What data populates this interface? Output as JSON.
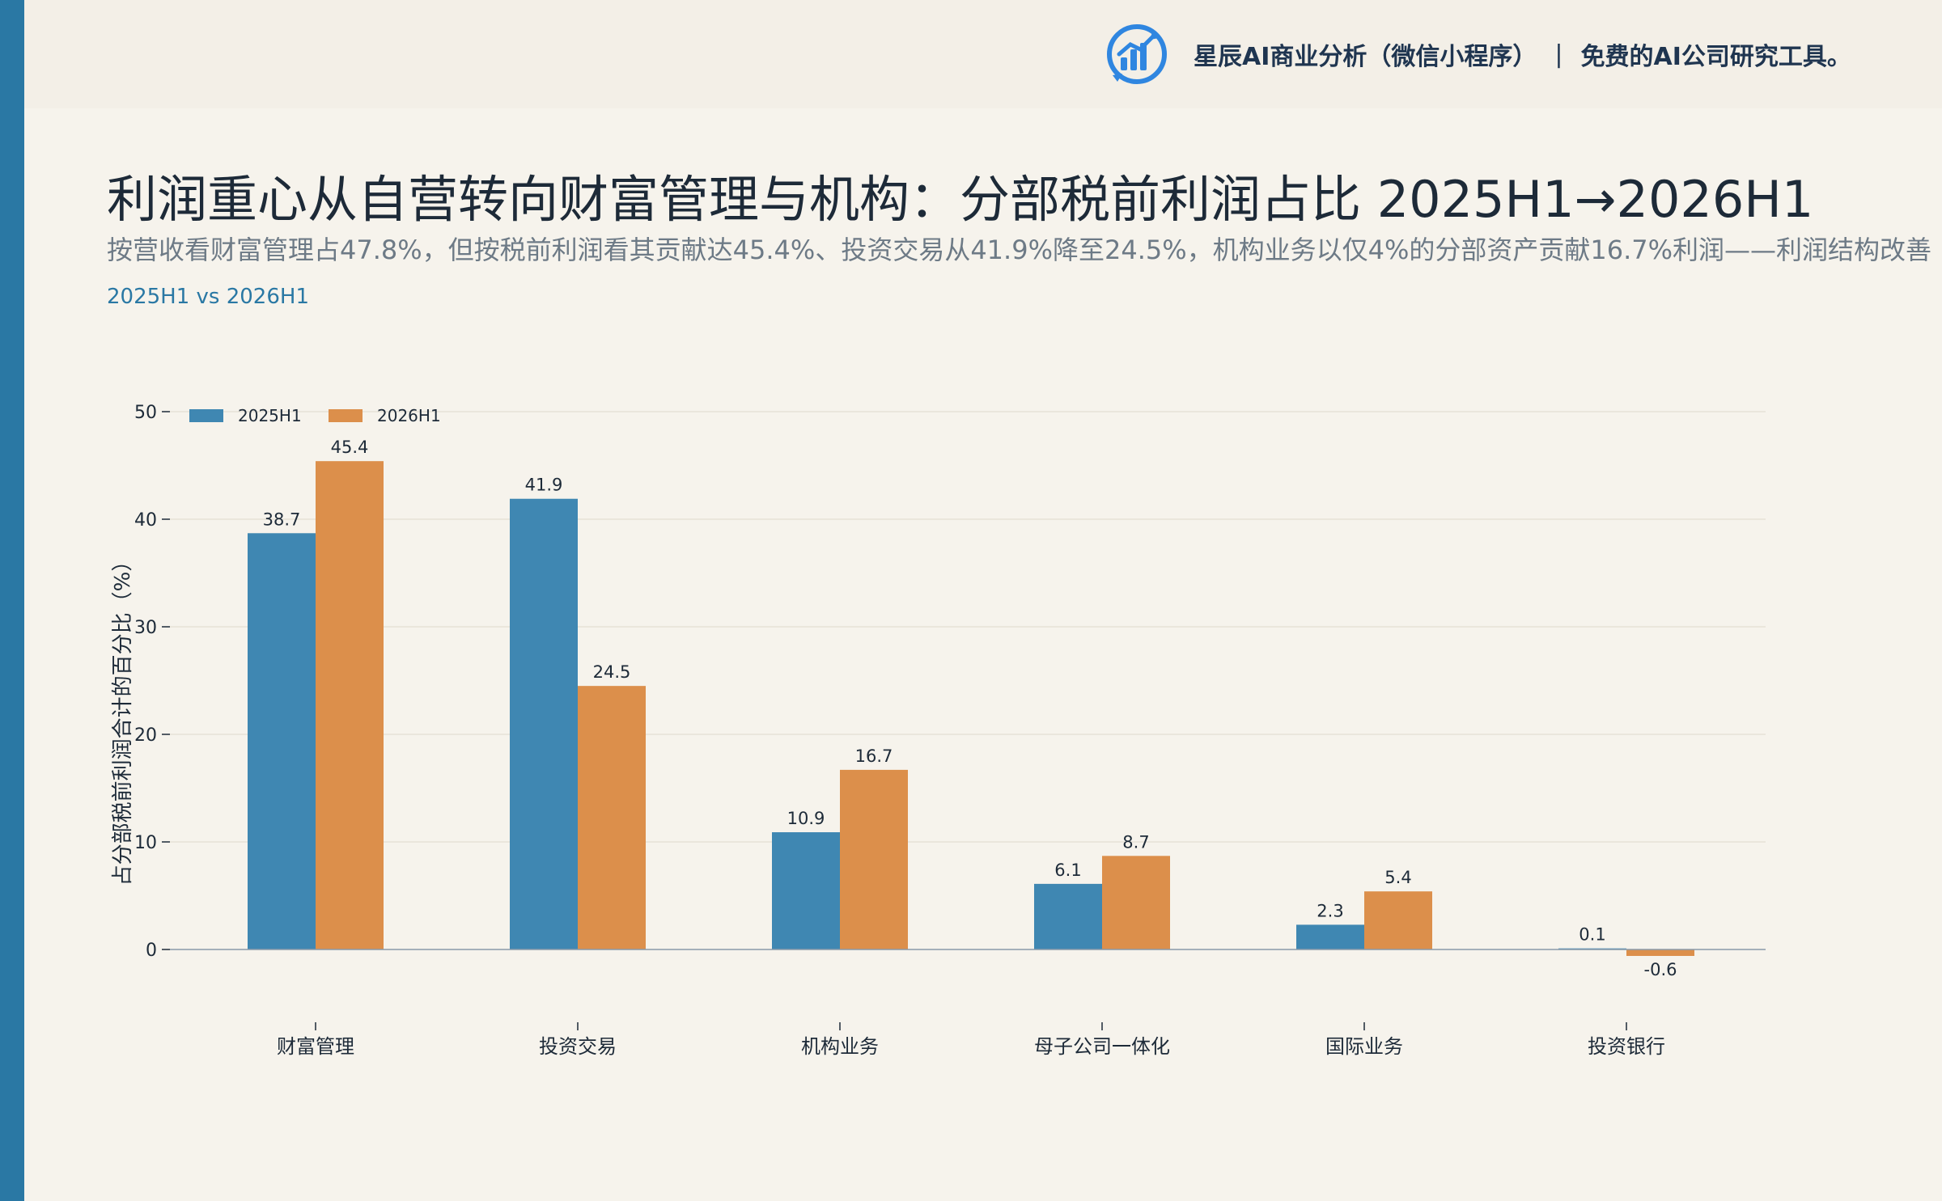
{
  "brand": {
    "name": "星辰AI商业分析（微信小程序）",
    "separator": "|",
    "slogan": "免费的AI公司研究工具。"
  },
  "header": {
    "title": "利润重心从自营转向财富管理与机构：分部税前利润占比 2025H1→2026H1",
    "subtitle": "按营收看财富管理占47.8%，但按税前利润看其贡献达45.4%、投资交易从41.9%降至24.5%，机构业务以仅4%的分部资产贡献16.7%利润——利润结构改善",
    "period_tag": "2025H1 vs 2026H1"
  },
  "colors": {
    "series_2025": "#3f87b2",
    "series_2026": "#dc8f4b",
    "accent": "#2a78a4",
    "background": "#f6f3ec"
  },
  "chart_data": {
    "type": "bar",
    "title": "",
    "xlabel": "",
    "ylabel": "占分部税前利润合计的百分比（%）",
    "ylim": [
      -3,
      50
    ],
    "yticks": [
      0,
      10,
      20,
      30,
      40,
      50
    ],
    "grid": true,
    "legend": "top-left",
    "categories": [
      "财富管理",
      "投资交易",
      "机构业务",
      "母子公司一体化",
      "国际业务",
      "投资银行"
    ],
    "series": [
      {
        "name": "2025H1",
        "values": [
          38.7,
          41.9,
          10.9,
          6.1,
          2.3,
          0.1
        ],
        "labels": [
          "38.7",
          "41.9",
          "10.9",
          "6.1",
          "2.3",
          "0.1"
        ]
      },
      {
        "name": "2026H1",
        "values": [
          45.4,
          24.5,
          16.7,
          8.7,
          5.4,
          -0.6
        ],
        "labels": [
          "45.4",
          "24.5",
          "16.7",
          "8.7",
          "5.4",
          "-0.6"
        ]
      }
    ]
  }
}
